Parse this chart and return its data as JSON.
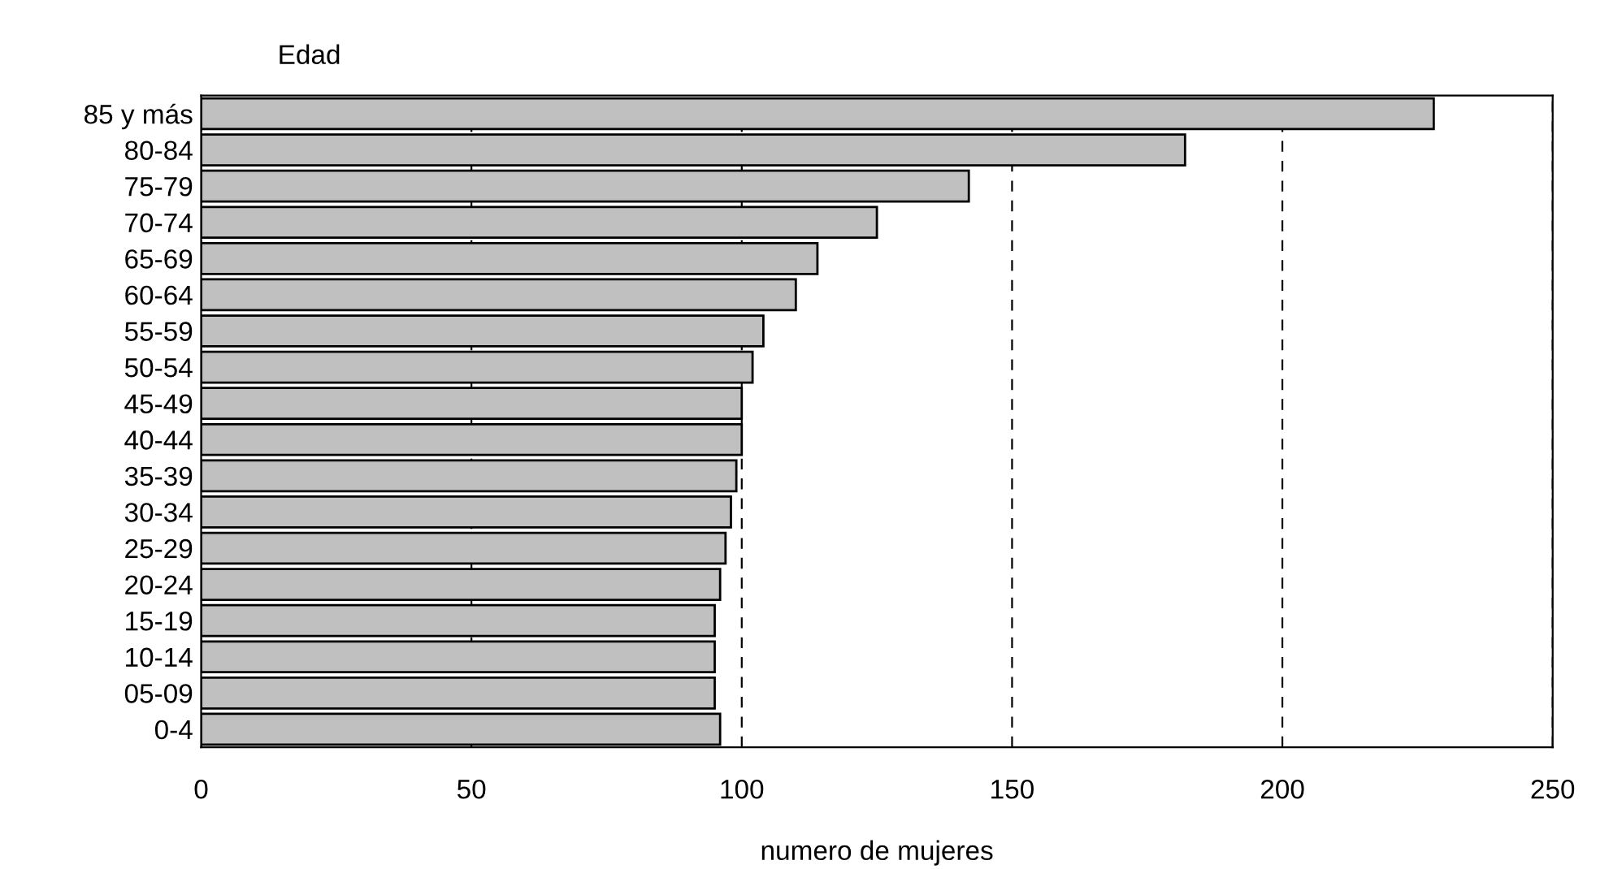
{
  "chart_data": {
    "type": "bar",
    "orientation": "horizontal",
    "ylabel": "Edad",
    "xlabel": "numero de mujeres",
    "categories": [
      "85 y más",
      "80-84",
      "75-79",
      "70-74",
      "65-69",
      "60-64",
      "55-59",
      "50-54",
      "45-49",
      "40-44",
      "35-39",
      "30-34",
      "25-29",
      "20-24",
      "15-19",
      "10-14",
      "05-09",
      "0-4"
    ],
    "values": [
      228,
      182,
      142,
      125,
      114,
      110,
      104,
      102,
      100,
      100,
      99,
      98,
      97,
      96,
      95,
      95,
      95,
      96
    ],
    "color": "#c0c0c0",
    "xlim": [
      0,
      250
    ],
    "xticks": [
      0,
      50,
      100,
      150,
      200,
      250
    ],
    "grid": "x",
    "line_style": "dashed"
  }
}
